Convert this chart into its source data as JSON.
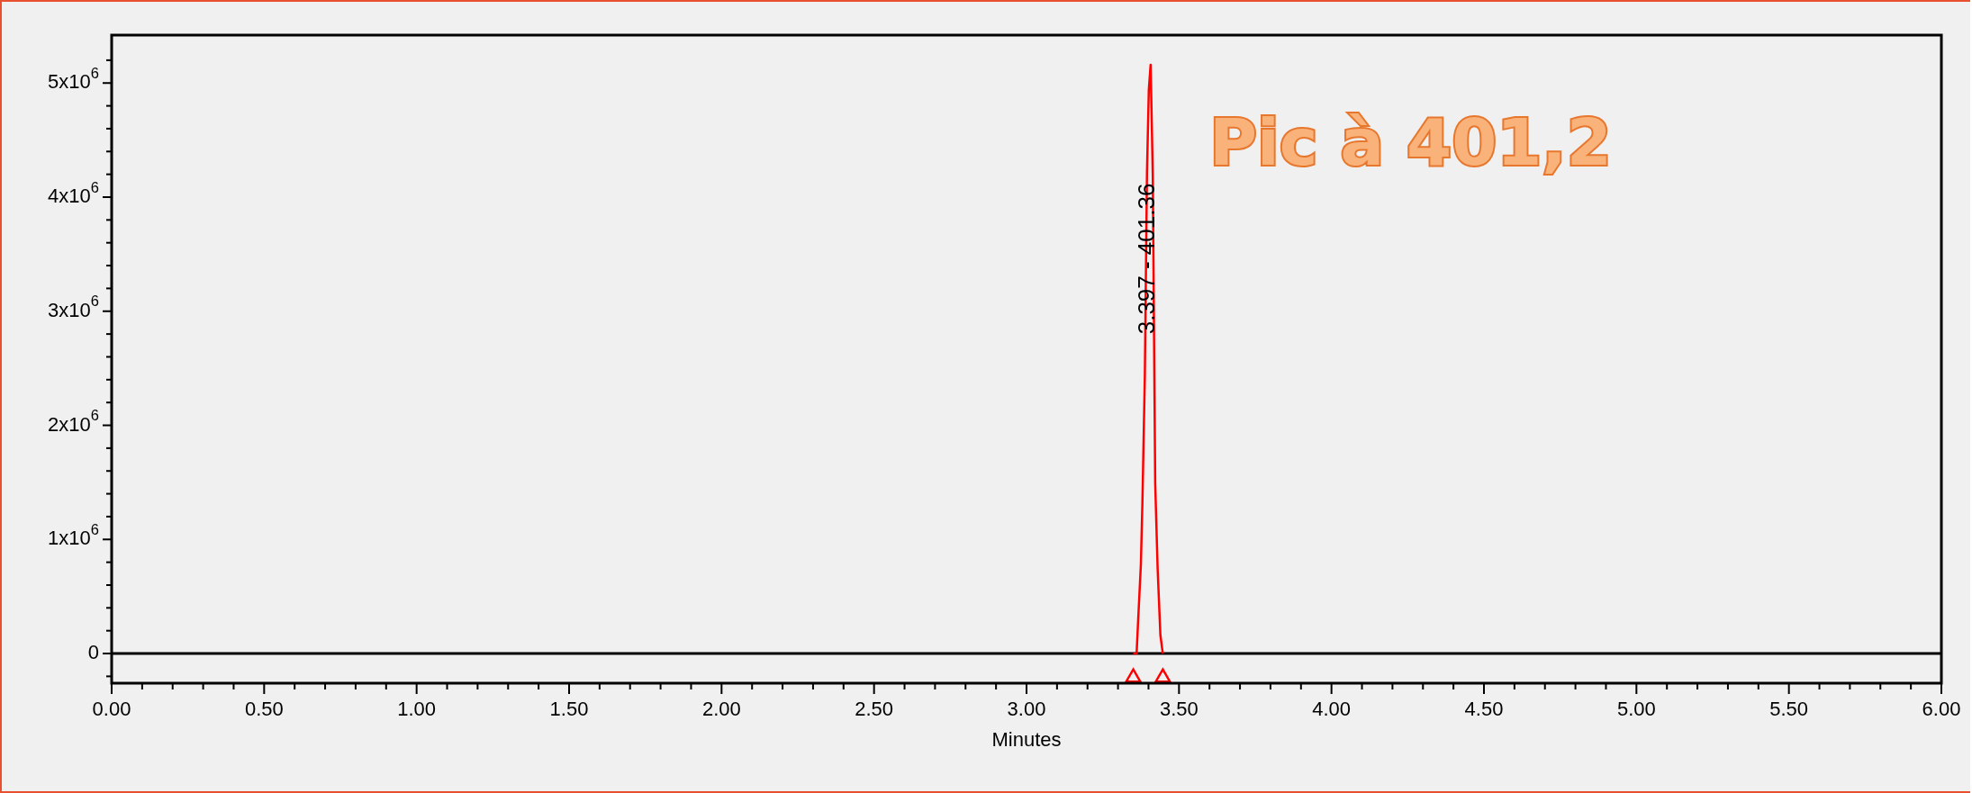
{
  "chart_data": {
    "type": "line",
    "xlabel": "Minutes",
    "xlim": [
      0,
      6
    ],
    "ylim": [
      -260000,
      5420000
    ],
    "xticks": [
      {
        "value": 0,
        "label": "0.00"
      },
      {
        "value": 0.1,
        "label": null
      },
      {
        "value": 0.2,
        "label": null
      },
      {
        "value": 0.3,
        "label": null
      },
      {
        "value": 0.4,
        "label": null
      },
      {
        "value": 0.5,
        "label": "0.50"
      },
      {
        "value": 0.6,
        "label": null
      },
      {
        "value": 0.7,
        "label": null
      },
      {
        "value": 0.8,
        "label": null
      },
      {
        "value": 0.9,
        "label": null
      },
      {
        "value": 1,
        "label": "1.00"
      },
      {
        "value": 1.1,
        "label": null
      },
      {
        "value": 1.2,
        "label": null
      },
      {
        "value": 1.3,
        "label": null
      },
      {
        "value": 1.4,
        "label": null
      },
      {
        "value": 1.5,
        "label": "1.50"
      },
      {
        "value": 1.6,
        "label": null
      },
      {
        "value": 1.7,
        "label": null
      },
      {
        "value": 1.8,
        "label": null
      },
      {
        "value": 1.9,
        "label": null
      },
      {
        "value": 2,
        "label": "2.00"
      },
      {
        "value": 2.1,
        "label": null
      },
      {
        "value": 2.2,
        "label": null
      },
      {
        "value": 2.3,
        "label": null
      },
      {
        "value": 2.4,
        "label": null
      },
      {
        "value": 2.5,
        "label": "2.50"
      },
      {
        "value": 2.6,
        "label": null
      },
      {
        "value": 2.7,
        "label": null
      },
      {
        "value": 2.8,
        "label": null
      },
      {
        "value": 2.9,
        "label": null
      },
      {
        "value": 3,
        "label": "3.00"
      },
      {
        "value": 3.1,
        "label": null
      },
      {
        "value": 3.2,
        "label": null
      },
      {
        "value": 3.3,
        "label": null
      },
      {
        "value": 3.4,
        "label": null
      },
      {
        "value": 3.5,
        "label": "3.50"
      },
      {
        "value": 3.6,
        "label": null
      },
      {
        "value": 3.7,
        "label": null
      },
      {
        "value": 3.8,
        "label": null
      },
      {
        "value": 3.9,
        "label": null
      },
      {
        "value": 4,
        "label": "4.00"
      },
      {
        "value": 4.1,
        "label": null
      },
      {
        "value": 4.2,
        "label": null
      },
      {
        "value": 4.3,
        "label": null
      },
      {
        "value": 4.4,
        "label": null
      },
      {
        "value": 4.5,
        "label": "4.50"
      },
      {
        "value": 4.6,
        "label": null
      },
      {
        "value": 4.7,
        "label": null
      },
      {
        "value": 4.8,
        "label": null
      },
      {
        "value": 4.9,
        "label": null
      },
      {
        "value": 5,
        "label": "5.00"
      },
      {
        "value": 5.1,
        "label": null
      },
      {
        "value": 5.2,
        "label": null
      },
      {
        "value": 5.3,
        "label": null
      },
      {
        "value": 5.4,
        "label": null
      },
      {
        "value": 5.5,
        "label": "5.50"
      },
      {
        "value": 5.6,
        "label": null
      },
      {
        "value": 5.7,
        "label": null
      },
      {
        "value": 5.8,
        "label": null
      },
      {
        "value": 5.9,
        "label": null
      },
      {
        "value": 6,
        "label": "6.00"
      }
    ],
    "yticks": [
      {
        "value": -200000,
        "label": null
      },
      {
        "value": 0,
        "label": "0"
      },
      {
        "value": 200000,
        "label": null
      },
      {
        "value": 400000,
        "label": null
      },
      {
        "value": 600000,
        "label": null
      },
      {
        "value": 800000,
        "label": null
      },
      {
        "value": 1000000,
        "label": "1x10$^{6}$"
      },
      {
        "value": 1200000,
        "label": null
      },
      {
        "value": 1400000,
        "label": null
      },
      {
        "value": 1600000,
        "label": null
      },
      {
        "value": 1800000,
        "label": null
      },
      {
        "value": 2000000,
        "label": "2x10$^{6}$"
      },
      {
        "value": 2200000,
        "label": null
      },
      {
        "value": 2400000,
        "label": null
      },
      {
        "value": 2600000,
        "label": null
      },
      {
        "value": 2800000,
        "label": null
      },
      {
        "value": 3000000,
        "label": "3x10$^{6}$"
      },
      {
        "value": 3200000,
        "label": null
      },
      {
        "value": 3400000,
        "label": null
      },
      {
        "value": 3600000,
        "label": null
      },
      {
        "value": 3800000,
        "label": null
      },
      {
        "value": 4000000,
        "label": "4x10$^{6}$"
      },
      {
        "value": 4200000,
        "label": null
      },
      {
        "value": 4400000,
        "label": null
      },
      {
        "value": 4600000,
        "label": null
      },
      {
        "value": 4800000,
        "label": null
      },
      {
        "value": 5000000,
        "label": "5x10$^{6}$"
      },
      {
        "value": 5200000,
        "label": null
      }
    ],
    "grid": false,
    "legend": false,
    "ref_lines": [
      {
        "axis": "y",
        "value": 0,
        "color": "#000000"
      }
    ],
    "series": [
      {
        "color": "#ff0000",
        "marker": "none",
        "x": [
          3.35,
          3.361,
          3.366,
          3.375,
          3.38,
          3.388,
          3.395,
          3.401,
          3.407,
          3.414,
          3.422,
          3.43,
          3.439,
          3.447
        ],
        "values": [
          0,
          0,
          290000,
          780000,
          1320000,
          2430000,
          4210000,
          4940000,
          5160000,
          4200000,
          1490000,
          740000,
          160000,
          0
        ]
      },
      {
        "type": "scatter",
        "color": "#ff0000",
        "marker": "triangle",
        "x": [
          3.35,
          3.447
        ],
        "values": [
          -210000,
          -210000
        ]
      }
    ],
    "annotations": [
      {
        "text": "3.397 - 401.36",
        "x": 3.397,
        "y": 3460000
      },
      "Pic à 401,2"
    ]
  }
}
